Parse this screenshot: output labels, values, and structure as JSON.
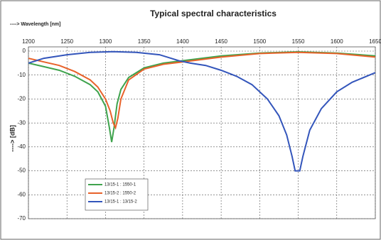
{
  "chart_data": {
    "type": "line",
    "title": "Typical spectral characteristics",
    "xlabel": "----> Wavelength [nm]",
    "ylabel": "----> [dB]",
    "xlim": [
      1200,
      1650
    ],
    "xticks": [
      1200,
      1250,
      1300,
      1350,
      1400,
      1450,
      1500,
      1550,
      1600,
      1650
    ],
    "ylim": [
      -70,
      0
    ],
    "yticks": [
      0,
      -10,
      -20,
      -30,
      -40,
      -50,
      -60,
      -70
    ],
    "grid": true,
    "legend_loc": "lower left",
    "series": [
      {
        "name": "13/15-1 : 1550-1",
        "color": "#3fa34d",
        "x": [
          1200,
          1220,
          1240,
          1260,
          1280,
          1290,
          1300,
          1305,
          1308,
          1311,
          1315,
          1320,
          1330,
          1350,
          1375,
          1400,
          1450,
          1500,
          1550,
          1600,
          1650
        ],
        "values": [
          -5,
          -6.5,
          -8,
          -10.5,
          -14,
          -17,
          -23,
          -32,
          -38,
          -32,
          -22,
          -16,
          -11,
          -7,
          -5,
          -4,
          -2,
          -0.8,
          -0.3,
          -0.8,
          -2
        ]
      },
      {
        "name": "13/15-2 : 1550-2",
        "color": "#e8622a",
        "x": [
          1200,
          1220,
          1240,
          1260,
          1280,
          1290,
          1300,
          1306,
          1310,
          1313,
          1316,
          1320,
          1330,
          1350,
          1375,
          1400,
          1450,
          1500,
          1550,
          1600,
          1650
        ],
        "values": [
          -3,
          -4.5,
          -6,
          -8.5,
          -12,
          -15,
          -20,
          -25,
          -30,
          -32,
          -28,
          -20,
          -12,
          -7.5,
          -5.5,
          -4.5,
          -2.5,
          -1,
          -0.5,
          -1,
          -2.5
        ]
      },
      {
        "name": "13/15-1 : 13/15-2",
        "color": "#3355bb",
        "x": [
          1200,
          1220,
          1250,
          1280,
          1310,
          1340,
          1370,
          1385,
          1395,
          1410,
          1430,
          1450,
          1470,
          1490,
          1510,
          1525,
          1535,
          1542,
          1546,
          1552,
          1556,
          1565,
          1580,
          1600,
          1620,
          1650
        ],
        "values": [
          -5,
          -3,
          -1.5,
          -0.5,
          -0.2,
          -0.5,
          -1.5,
          -3,
          -4,
          -5,
          -6,
          -8,
          -10.5,
          -14,
          -20,
          -27,
          -35,
          -44,
          -50,
          -50,
          -44,
          -33,
          -24,
          -17,
          -13,
          -9
        ]
      }
    ]
  }
}
